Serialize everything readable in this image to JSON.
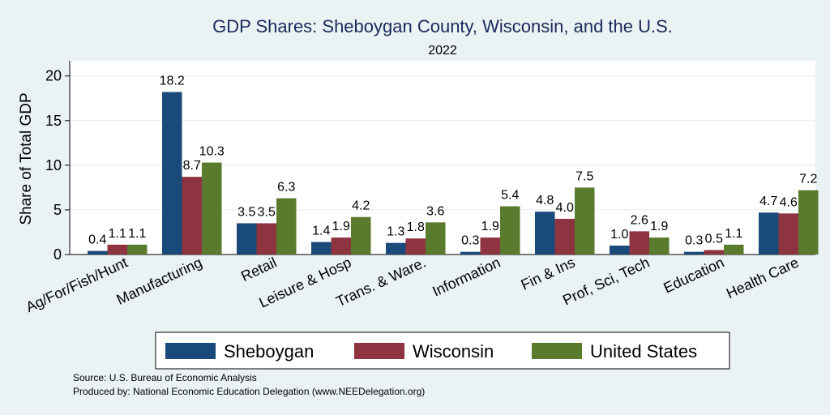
{
  "chart_data": {
    "type": "bar",
    "title": "GDP Shares: Sheboygan County, Wisconsin, and the U.S.",
    "subtitle": "2022",
    "ylabel": "Share of Total GDP",
    "xlabel": "",
    "ylim": [
      0,
      21.7
    ],
    "yticks": [
      "0",
      "5",
      "10",
      "15",
      "20"
    ],
    "grid": true,
    "legend_position": "bottom",
    "categories": [
      "Ag/For/Fish/Hunt",
      "Manufacturing",
      "Retail",
      "Leisure & Hosp",
      "Trans. & Ware.",
      "Information",
      "Fin & Ins",
      "Prof, Sci, Tech",
      "Education",
      "Health Care"
    ],
    "series": [
      {
        "name": "Sheboygan",
        "color": "#1a4a7a",
        "values": [
          0.4,
          18.2,
          3.5,
          1.4,
          1.3,
          0.3,
          4.8,
          1.0,
          0.3,
          4.7
        ],
        "labels": [
          "0.4",
          "18.2",
          "3.5",
          "1.4",
          "1.3",
          "0.3",
          "4.8",
          "1.0",
          "0.3",
          "4.7"
        ]
      },
      {
        "name": "Wisconsin",
        "color": "#8e3340",
        "values": [
          1.1,
          8.7,
          3.5,
          1.9,
          1.8,
          1.9,
          4.0,
          2.6,
          0.5,
          4.6
        ],
        "labels": [
          "1.1",
          "8.7",
          "3.5",
          "1.9",
          "1.8",
          "1.9",
          "4.0",
          "2.6",
          "0.5",
          "4.6"
        ]
      },
      {
        "name": "United States",
        "color": "#5a7a2e",
        "values": [
          1.1,
          10.3,
          6.3,
          4.2,
          3.6,
          5.4,
          7.5,
          1.9,
          1.1,
          7.2
        ],
        "labels": [
          "1.1",
          "10.3",
          "6.3",
          "4.2",
          "3.6",
          "5.4",
          "7.5",
          "1.9",
          "1.1",
          "7.2"
        ]
      }
    ],
    "source_lines": [
      "Source: U.S. Bureau of Economic Analysis",
      "Produced by: National Economic Education Delegation (www.NEEDelegation.org)"
    ]
  }
}
